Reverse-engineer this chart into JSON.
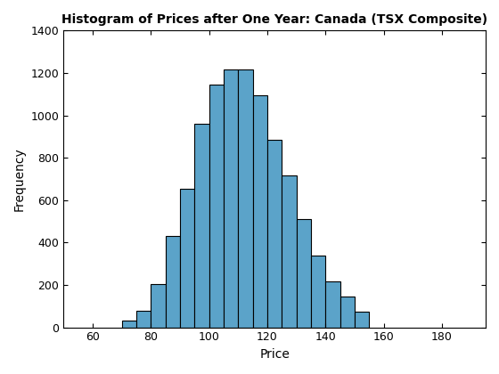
{
  "title": "Histogram of Prices after One Year: Canada (TSX Composite)",
  "xlabel": "Price",
  "ylabel": "Frequency",
  "bar_color": "#5BA3C9",
  "edge_color": "#000000",
  "xlim": [
    50,
    195
  ],
  "ylim": [
    0,
    1400
  ],
  "xticks": [
    60,
    80,
    100,
    120,
    140,
    160,
    180
  ],
  "yticks": [
    0,
    200,
    400,
    600,
    800,
    1000,
    1200,
    1400
  ],
  "bin_edges": [
    70,
    75,
    80,
    85,
    90,
    95,
    100,
    105,
    110,
    115,
    120,
    125,
    130,
    135,
    140,
    145,
    150,
    155
  ],
  "frequencies": [
    30,
    80,
    205,
    430,
    655,
    960,
    1145,
    1215,
    1215,
    1095,
    885,
    715,
    510,
    340,
    215,
    145,
    75
  ]
}
